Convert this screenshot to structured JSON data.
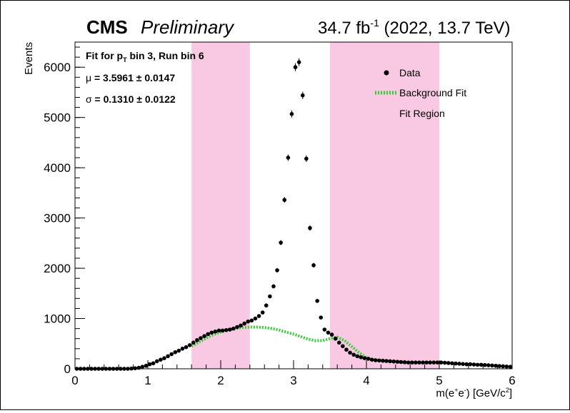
{
  "header": {
    "experiment": "CMS",
    "status": "Preliminary",
    "lumi_value": "34.7 fb",
    "lumi_exp": "-1",
    "lumi_rest": " (2022, 13.7 TeV)"
  },
  "info": {
    "line1_pre": "Fit for p",
    "line1_sub": "T",
    "line1_post": " bin 3, Run bin 6",
    "mu_symbol": "μ",
    "mu_text": " = 3.5961 ± 0.0147",
    "sigma_symbol": "σ",
    "sigma_text": " = 0.1310 ± 0.0122"
  },
  "axes": {
    "xlabel_pre": "m(e",
    "xlabel_sup1": "+",
    "xlabel_mid": "e",
    "xlabel_sup2": "-",
    "xlabel_post": ") [GeV/c",
    "xlabel_sup3": "2",
    "xlabel_end": "]",
    "ylabel": "Events"
  },
  "chart_data": {
    "type": "scatter",
    "xlim": [
      0,
      6
    ],
    "ylim": [
      0,
      6500
    ],
    "x_ticks": [
      0,
      1,
      2,
      3,
      4,
      5,
      6
    ],
    "y_ticks": [
      0,
      1000,
      2000,
      3000,
      4000,
      5000,
      6000
    ],
    "fit_regions": [
      [
        1.6,
        2.4
      ],
      [
        3.5,
        5.0
      ]
    ],
    "legend": {
      "position": "top-right",
      "entries": [
        {
          "label": "Data",
          "kind": "marker"
        },
        {
          "label": "Background Fit",
          "kind": "line"
        },
        {
          "label": "Fit Region",
          "kind": "box"
        }
      ]
    },
    "colors": {
      "fit_region": "#f9c9e3",
      "background_fit": "#33cc33",
      "data": "#000000"
    },
    "series": [
      {
        "name": "Data",
        "x": [
          0.025,
          0.075,
          0.125,
          0.175,
          0.225,
          0.275,
          0.325,
          0.375,
          0.425,
          0.475,
          0.525,
          0.575,
          0.625,
          0.675,
          0.725,
          0.775,
          0.825,
          0.875,
          0.925,
          0.975,
          1.025,
          1.075,
          1.125,
          1.175,
          1.225,
          1.275,
          1.325,
          1.375,
          1.425,
          1.475,
          1.525,
          1.575,
          1.625,
          1.675,
          1.725,
          1.775,
          1.825,
          1.875,
          1.925,
          1.975,
          2.025,
          2.075,
          2.125,
          2.175,
          2.225,
          2.275,
          2.325,
          2.375,
          2.425,
          2.475,
          2.525,
          2.575,
          2.625,
          2.675,
          2.725,
          2.775,
          2.825,
          2.875,
          2.925,
          2.975,
          3.025,
          3.075,
          3.125,
          3.175,
          3.225,
          3.275,
          3.325,
          3.375,
          3.425,
          3.475,
          3.525,
          3.575,
          3.625,
          3.675,
          3.725,
          3.775,
          3.825,
          3.875,
          3.925,
          3.975,
          4.025,
          4.075,
          4.125,
          4.175,
          4.225,
          4.275,
          4.325,
          4.375,
          4.425,
          4.475,
          4.525,
          4.575,
          4.625,
          4.675,
          4.725,
          4.775,
          4.825,
          4.875,
          4.925,
          4.975,
          5.025,
          5.075,
          5.125,
          5.175,
          5.225,
          5.275,
          5.325,
          5.375,
          5.425,
          5.475,
          5.525,
          5.575,
          5.625,
          5.675,
          5.725,
          5.775,
          5.825,
          5.875,
          5.925,
          5.975
        ],
        "y": [
          0,
          0,
          0,
          0,
          0,
          0,
          0,
          0,
          0,
          0,
          0,
          0,
          0,
          0,
          0,
          5,
          10,
          20,
          40,
          60,
          90,
          110,
          150,
          180,
          210,
          250,
          290,
          330,
          360,
          400,
          430,
          470,
          520,
          570,
          610,
          650,
          690,
          720,
          740,
          760,
          760,
          770,
          780,
          800,
          830,
          860,
          900,
          940,
          960,
          1000,
          1050,
          1120,
          1260,
          1440,
          1640,
          1960,
          2510,
          3360,
          4200,
          5070,
          6000,
          6100,
          5440,
          4180,
          2800,
          2060,
          1350,
          1020,
          780,
          720,
          680,
          600,
          520,
          450,
          380,
          320,
          280,
          250,
          230,
          210,
          200,
          180,
          170,
          165,
          160,
          155,
          150,
          145,
          140,
          135,
          130,
          125,
          125,
          125,
          125,
          125,
          125,
          125,
          125,
          125,
          125,
          120,
          115,
          110,
          105,
          100,
          95,
          90,
          90,
          85,
          80,
          80,
          75,
          70,
          65,
          60,
          55,
          50,
          45,
          40
        ]
      },
      {
        "name": "Background Fit",
        "x": [
          1.6,
          1.7,
          1.8,
          1.9,
          2.0,
          2.1,
          2.2,
          2.3,
          2.4,
          2.5,
          2.6,
          2.7,
          2.8,
          2.9,
          3.0,
          3.1,
          3.2,
          3.3,
          3.4,
          3.5,
          3.6,
          3.7,
          3.8,
          3.9,
          4.0,
          4.1,
          4.2,
          4.3,
          4.4,
          4.5,
          4.6,
          4.7,
          4.8,
          4.9,
          5.0
        ],
        "y": [
          450,
          530,
          610,
          680,
          730,
          770,
          800,
          820,
          830,
          830,
          820,
          800,
          770,
          730,
          690,
          640,
          590,
          560,
          560,
          600,
          630,
          560,
          440,
          320,
          220,
          180,
          160,
          150,
          140,
          130,
          120,
          120,
          125,
          130,
          130
        ]
      }
    ]
  }
}
